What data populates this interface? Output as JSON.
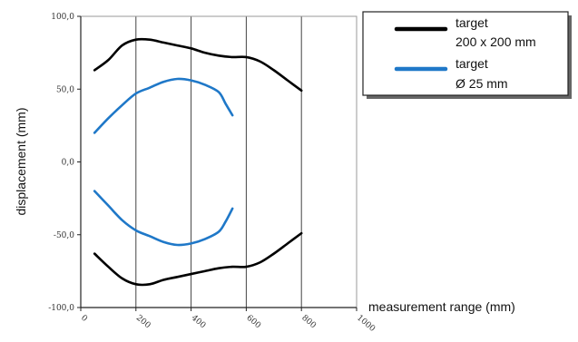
{
  "chart_data": {
    "type": "line",
    "title": "",
    "xlabel": "measurement range (mm)",
    "ylabel": "displacement (mm)",
    "xlim": [
      0,
      1000
    ],
    "ylim": [
      -100,
      100
    ],
    "x_ticks": [
      0,
      200,
      400,
      600,
      800,
      1000
    ],
    "x_tick_labels": [
      "0",
      "200",
      "400",
      "600",
      "800",
      "1000"
    ],
    "y_ticks": [
      -100,
      -50,
      0,
      50,
      100
    ],
    "y_tick_labels": [
      "-100,0",
      "-50,0",
      "0,0",
      "50,0",
      "100,0"
    ],
    "grid": {
      "vertical": true,
      "horizontal": false
    },
    "legend_position": "top-right",
    "legend": [
      {
        "lines": [
          "target",
          "200 x 200 mm"
        ],
        "color": "#000000"
      },
      {
        "lines": [
          "target",
          "Ø 25 mm"
        ],
        "color": "#1f78c8"
      }
    ],
    "series": [
      {
        "color": "#000000",
        "branches": [
          [
            [
              50,
              63
            ],
            [
              100,
              70
            ],
            [
              150,
              80
            ],
            [
              200,
              84
            ],
            [
              250,
              84
            ],
            [
              300,
              82
            ],
            [
              350,
              80
            ],
            [
              400,
              78
            ],
            [
              450,
              75
            ],
            [
              500,
              73
            ],
            [
              550,
              72
            ],
            [
              600,
              72
            ],
            [
              650,
              69
            ],
            [
              700,
              63
            ],
            [
              750,
              56
            ],
            [
              800,
              49
            ]
          ],
          [
            [
              50,
              -63
            ],
            [
              100,
              -72
            ],
            [
              150,
              -80
            ],
            [
              200,
              -84
            ],
            [
              250,
              -84
            ],
            [
              300,
              -81
            ],
            [
              350,
              -79
            ],
            [
              400,
              -77
            ],
            [
              450,
              -75
            ],
            [
              500,
              -73
            ],
            [
              550,
              -72
            ],
            [
              600,
              -72
            ],
            [
              650,
              -69
            ],
            [
              700,
              -63
            ],
            [
              750,
              -56
            ],
            [
              800,
              -49
            ]
          ]
        ]
      },
      {
        "color": "#1f78c8",
        "branches": [
          [
            [
              50,
              20
            ],
            [
              100,
              30
            ],
            [
              150,
              39
            ],
            [
              200,
              47
            ],
            [
              250,
              51
            ],
            [
              300,
              55
            ],
            [
              350,
              57
            ],
            [
              400,
              56
            ],
            [
              450,
              53
            ],
            [
              500,
              48
            ],
            [
              525,
              40
            ],
            [
              550,
              32
            ]
          ],
          [
            [
              50,
              -20
            ],
            [
              100,
              -30
            ],
            [
              150,
              -40
            ],
            [
              200,
              -47
            ],
            [
              250,
              -51
            ],
            [
              300,
              -55
            ],
            [
              350,
              -57
            ],
            [
              400,
              -56
            ],
            [
              450,
              -53
            ],
            [
              500,
              -48
            ],
            [
              525,
              -41
            ],
            [
              550,
              -32
            ]
          ]
        ]
      }
    ]
  }
}
